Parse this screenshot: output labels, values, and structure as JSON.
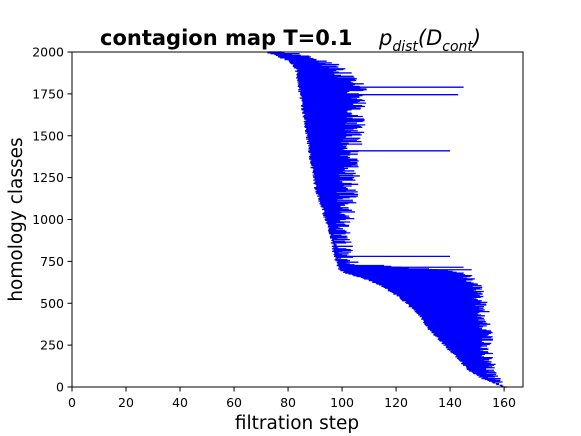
{
  "chart_data": {
    "type": "barcode",
    "title": "contagion map T=0.1",
    "title_math": {
      "base": "p",
      "base_sub": "dist",
      "arg": "D",
      "arg_sub": "cont"
    },
    "xlabel": "filtration step",
    "ylabel": "homology classes",
    "xlim": [
      0,
      167
    ],
    "ylim": [
      0,
      2000
    ],
    "xticks": [
      0,
      20,
      40,
      60,
      80,
      100,
      120,
      140,
      160
    ],
    "yticks": [
      0,
      250,
      500,
      750,
      1000,
      1250,
      1500,
      1750,
      2000
    ],
    "bar_color": "#0000ff",
    "birth_curve": [
      [
        160,
        0
      ],
      [
        152,
        50
      ],
      [
        147,
        100
      ],
      [
        144,
        150
      ],
      [
        141,
        200
      ],
      [
        138,
        250
      ],
      [
        135,
        300
      ],
      [
        132,
        350
      ],
      [
        130,
        400
      ],
      [
        127,
        450
      ],
      [
        124,
        500
      ],
      [
        120,
        550
      ],
      [
        115,
        600
      ],
      [
        108,
        650
      ],
      [
        102,
        675
      ],
      [
        99,
        700
      ],
      [
        98,
        750
      ],
      [
        97,
        800
      ],
      [
        96,
        900
      ],
      [
        94,
        1000
      ],
      [
        92,
        1100
      ],
      [
        90,
        1200
      ],
      [
        89,
        1300
      ],
      [
        88,
        1400
      ],
      [
        87,
        1500
      ],
      [
        86,
        1600
      ],
      [
        85,
        1700
      ],
      [
        84,
        1800
      ],
      [
        83,
        1900
      ],
      [
        80,
        1950
      ],
      [
        72,
        2000
      ]
    ],
    "death_curve": [
      [
        161,
        0
      ],
      [
        159,
        50
      ],
      [
        158,
        100
      ],
      [
        157,
        150
      ],
      [
        156,
        200
      ],
      [
        156,
        300
      ],
      [
        155,
        400
      ],
      [
        155,
        450
      ],
      [
        154,
        500
      ],
      [
        153,
        550
      ],
      [
        152,
        600
      ],
      [
        150,
        650
      ],
      [
        148,
        680
      ],
      [
        140,
        700
      ],
      [
        112,
        730
      ],
      [
        105,
        750
      ],
      [
        104,
        800
      ],
      [
        104,
        900
      ],
      [
        105,
        1000
      ],
      [
        106,
        1100
      ],
      [
        106,
        1200
      ],
      [
        107,
        1300
      ],
      [
        107,
        1400
      ],
      [
        108,
        1500
      ],
      [
        109,
        1600
      ],
      [
        110,
        1700
      ],
      [
        109,
        1800
      ],
      [
        103,
        1900
      ],
      [
        95,
        1950
      ],
      [
        82,
        2000
      ]
    ],
    "long_bars": [
      {
        "y": 1790,
        "birth": 84,
        "death": 145
      },
      {
        "y": 1745,
        "birth": 85,
        "death": 143
      },
      {
        "y": 1410,
        "birth": 88,
        "death": 140
      },
      {
        "y": 780,
        "birth": 97,
        "death": 140
      },
      {
        "y": 715,
        "birth": 100,
        "death": 145
      },
      {
        "y": 700,
        "birth": 100,
        "death": 148
      }
    ]
  }
}
